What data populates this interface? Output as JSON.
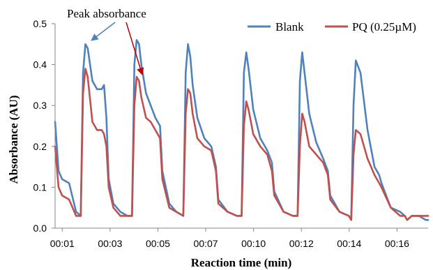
{
  "chart_data": {
    "type": "line",
    "title": "",
    "xlabel": "Reaction time (min)",
    "ylabel": "Absorbance (AU)",
    "xlim": [
      1,
      17
    ],
    "ylim": [
      0,
      0.5
    ],
    "x_tick_labels": [
      "00:01",
      "00:03",
      "00:05",
      "00:07",
      "00:10",
      "00:12",
      "00:14",
      "00:16"
    ],
    "y_tick_labels": [
      "0.0",
      "0.1",
      "0.2",
      "0.3",
      "0.4",
      "0.5"
    ],
    "legend_position": "top-right",
    "grid": false,
    "annotation": "Peak absorbance",
    "series": [
      {
        "name": "Blank",
        "color": "#4F81BD",
        "x": [
          1.0,
          1.15,
          1.3,
          1.6,
          1.9,
          2.1,
          2.2,
          2.3,
          2.4,
          2.6,
          2.8,
          3.0,
          3.1,
          3.2,
          3.3,
          3.5,
          3.8,
          4.1,
          4.3,
          4.4,
          4.5,
          4.6,
          4.7,
          4.9,
          5.1,
          5.3,
          5.5,
          5.6,
          5.9,
          6.2,
          6.5,
          6.6,
          6.7,
          6.8,
          6.9,
          7.1,
          7.4,
          7.7,
          7.9,
          8.0,
          8.4,
          8.8,
          9.0,
          9.1,
          9.2,
          9.3,
          9.5,
          9.8,
          10.1,
          10.3,
          10.4,
          10.8,
          11.2,
          11.4,
          11.5,
          11.6,
          11.7,
          11.9,
          12.2,
          12.5,
          12.7,
          12.8,
          13.2,
          13.6,
          13.7,
          13.8,
          13.9,
          14.1,
          14.4,
          14.7,
          14.9,
          15.0,
          15.4,
          15.8,
          16.0,
          16.1,
          16.3,
          16.6,
          16.9,
          17.0
        ],
        "values": [
          0.26,
          0.14,
          0.12,
          0.11,
          0.04,
          0.03,
          0.38,
          0.45,
          0.44,
          0.36,
          0.34,
          0.34,
          0.35,
          0.27,
          0.12,
          0.06,
          0.04,
          0.03,
          0.03,
          0.4,
          0.46,
          0.45,
          0.4,
          0.33,
          0.3,
          0.27,
          0.25,
          0.14,
          0.06,
          0.04,
          0.03,
          0.38,
          0.45,
          0.42,
          0.35,
          0.27,
          0.22,
          0.2,
          0.15,
          0.07,
          0.04,
          0.03,
          0.03,
          0.38,
          0.43,
          0.39,
          0.29,
          0.22,
          0.19,
          0.16,
          0.09,
          0.04,
          0.03,
          0.03,
          0.36,
          0.43,
          0.38,
          0.28,
          0.21,
          0.17,
          0.14,
          0.08,
          0.04,
          0.03,
          0.02,
          0.3,
          0.41,
          0.38,
          0.24,
          0.15,
          0.13,
          0.11,
          0.05,
          0.04,
          0.03,
          0.02,
          0.03,
          0.03,
          0.02,
          0.02
        ]
      },
      {
        "name": "PQ (0.25µM)",
        "color": "#C0504D",
        "x": [
          1.0,
          1.15,
          1.3,
          1.6,
          1.9,
          2.1,
          2.2,
          2.3,
          2.4,
          2.6,
          2.8,
          3.0,
          3.1,
          3.2,
          3.3,
          3.5,
          3.8,
          4.1,
          4.3,
          4.4,
          4.5,
          4.6,
          4.7,
          4.9,
          5.1,
          5.3,
          5.5,
          5.6,
          5.9,
          6.2,
          6.5,
          6.6,
          6.7,
          6.8,
          6.9,
          7.1,
          7.4,
          7.7,
          7.9,
          8.0,
          8.4,
          8.8,
          9.0,
          9.1,
          9.2,
          9.3,
          9.5,
          9.8,
          10.1,
          10.3,
          10.4,
          10.8,
          11.2,
          11.4,
          11.5,
          11.6,
          11.7,
          11.9,
          12.2,
          12.5,
          12.7,
          12.8,
          13.2,
          13.6,
          13.7,
          13.8,
          13.9,
          14.1,
          14.4,
          14.7,
          14.9,
          15.0,
          15.4,
          15.8,
          16.0,
          16.1,
          16.3,
          16.6,
          16.9,
          17.0
        ],
        "values": [
          0.2,
          0.1,
          0.08,
          0.07,
          0.03,
          0.03,
          0.33,
          0.39,
          0.37,
          0.26,
          0.24,
          0.24,
          0.23,
          0.2,
          0.1,
          0.05,
          0.03,
          0.03,
          0.03,
          0.3,
          0.37,
          0.36,
          0.32,
          0.27,
          0.26,
          0.24,
          0.22,
          0.12,
          0.05,
          0.04,
          0.03,
          0.28,
          0.34,
          0.33,
          0.28,
          0.22,
          0.2,
          0.19,
          0.14,
          0.06,
          0.04,
          0.03,
          0.03,
          0.25,
          0.31,
          0.29,
          0.23,
          0.2,
          0.18,
          0.14,
          0.08,
          0.04,
          0.03,
          0.03,
          0.2,
          0.28,
          0.26,
          0.2,
          0.18,
          0.16,
          0.13,
          0.07,
          0.04,
          0.03,
          0.02,
          0.18,
          0.24,
          0.23,
          0.17,
          0.13,
          0.11,
          0.1,
          0.05,
          0.03,
          0.03,
          0.02,
          0.03,
          0.03,
          0.03,
          0.03
        ]
      }
    ]
  }
}
